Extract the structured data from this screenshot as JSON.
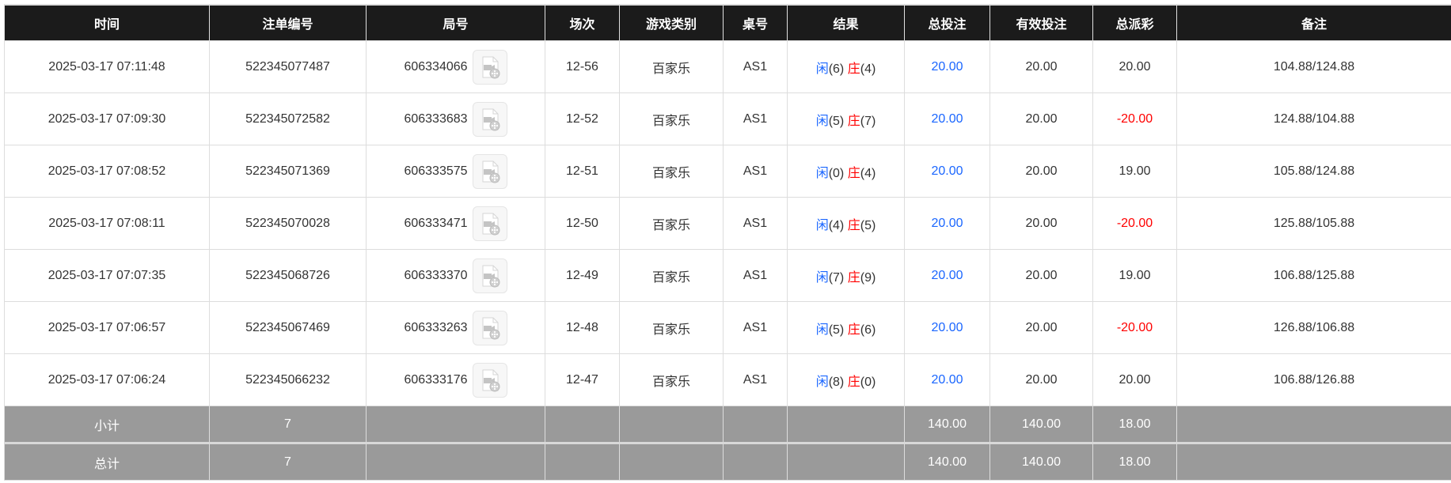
{
  "headers": [
    "时间",
    "注单编号",
    "局号",
    "场次",
    "游戏类别",
    "桌号",
    "结果",
    "总投注",
    "有效投注",
    "总派彩",
    "备注"
  ],
  "rows": [
    {
      "time": "2025-03-17 07:11:48",
      "bet_id": "522345077487",
      "round": "606334066",
      "session": "12-56",
      "game": "百家乐",
      "table": "AS1",
      "player_label": "闲",
      "player": "(6)",
      "banker_label": "庄",
      "banker": "(4)",
      "total_bet": "20.00",
      "valid_bet": "20.00",
      "payout": "20.00",
      "payout_negative": false,
      "note": "104.88/124.88"
    },
    {
      "time": "2025-03-17 07:09:30",
      "bet_id": "522345072582",
      "round": "606333683",
      "session": "12-52",
      "game": "百家乐",
      "table": "AS1",
      "player_label": "闲",
      "player": "(5)",
      "banker_label": "庄",
      "banker": "(7)",
      "total_bet": "20.00",
      "valid_bet": "20.00",
      "payout": "-20.00",
      "payout_negative": true,
      "note": "124.88/104.88"
    },
    {
      "time": "2025-03-17 07:08:52",
      "bet_id": "522345071369",
      "round": "606333575",
      "session": "12-51",
      "game": "百家乐",
      "table": "AS1",
      "player_label": "闲",
      "player": "(0)",
      "banker_label": "庄",
      "banker": "(4)",
      "total_bet": "20.00",
      "valid_bet": "20.00",
      "payout": "19.00",
      "payout_negative": false,
      "note": "105.88/124.88"
    },
    {
      "time": "2025-03-17 07:08:11",
      "bet_id": "522345070028",
      "round": "606333471",
      "session": "12-50",
      "game": "百家乐",
      "table": "AS1",
      "player_label": "闲",
      "player": "(4)",
      "banker_label": "庄",
      "banker": "(5)",
      "total_bet": "20.00",
      "valid_bet": "20.00",
      "payout": "-20.00",
      "payout_negative": true,
      "note": "125.88/105.88"
    },
    {
      "time": "2025-03-17 07:07:35",
      "bet_id": "522345068726",
      "round": "606333370",
      "session": "12-49",
      "game": "百家乐",
      "table": "AS1",
      "player_label": "闲",
      "player": "(7)",
      "banker_label": "庄",
      "banker": "(9)",
      "total_bet": "20.00",
      "valid_bet": "20.00",
      "payout": "19.00",
      "payout_negative": false,
      "note": "106.88/125.88"
    },
    {
      "time": "2025-03-17 07:06:57",
      "bet_id": "522345067469",
      "round": "606333263",
      "session": "12-48",
      "game": "百家乐",
      "table": "AS1",
      "player_label": "闲",
      "player": "(5)",
      "banker_label": "庄",
      "banker": "(6)",
      "total_bet": "20.00",
      "valid_bet": "20.00",
      "payout": "-20.00",
      "payout_negative": true,
      "note": "126.88/106.88"
    },
    {
      "time": "2025-03-17 07:06:24",
      "bet_id": "522345066232",
      "round": "606333176",
      "session": "12-47",
      "game": "百家乐",
      "table": "AS1",
      "player_label": "闲",
      "player": "(8)",
      "banker_label": "庄",
      "banker": "(0)",
      "total_bet": "20.00",
      "valid_bet": "20.00",
      "payout": "20.00",
      "payout_negative": false,
      "note": "106.88/126.88"
    }
  ],
  "subtotal": {
    "label": "小计",
    "count": "7",
    "total_bet": "140.00",
    "valid_bet": "140.00",
    "payout": "18.00"
  },
  "total": {
    "label": "总计",
    "count": "7",
    "total_bet": "140.00",
    "valid_bet": "140.00",
    "payout": "18.00"
  },
  "icons": {
    "replay": "video-replay-icon"
  },
  "colors": {
    "header_bg": "#1b1b1b",
    "player": "#1a66ff",
    "banker": "#ff0000",
    "negative": "#ff0000",
    "footer_bg": "#9a9a9a"
  }
}
